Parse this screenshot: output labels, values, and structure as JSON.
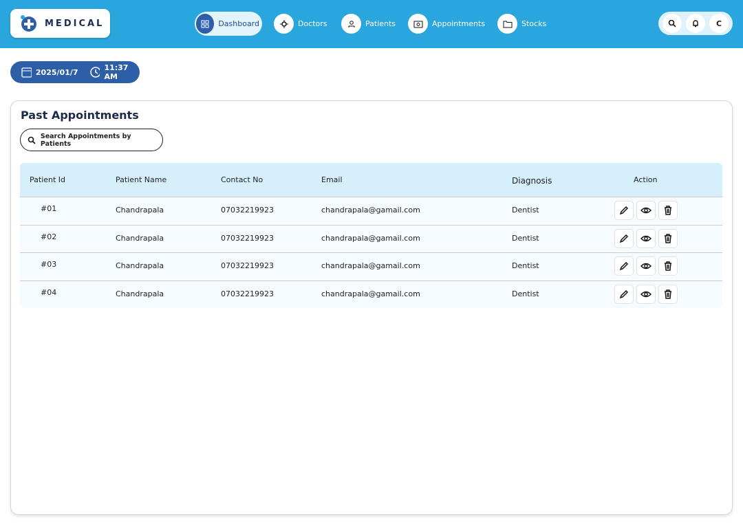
{
  "header": {
    "logo": "MEDICAL",
    "nav": [
      "Dashboard",
      "Doctors",
      "Patients",
      "Appointments",
      "Stocks"
    ],
    "user_initial": "C"
  },
  "datetime": {
    "date": "2025/01/7",
    "time": "11:37 AM"
  },
  "panel": {
    "title": "Past Appointments",
    "search_placeholder": "Search Appointments by Patients"
  },
  "table": {
    "headers": [
      "Patient Id",
      "Patient Name",
      "Contact No",
      "Email",
      "Diagnosis",
      "Action"
    ],
    "rows": [
      [
        "#01",
        "Chandrapala",
        "07032219923",
        "chandrapala@gamail.com",
        "Dentist"
      ],
      [
        "#02",
        "Chandrapala",
        "07032219923",
        "chandrapala@gamail.com",
        "Dentist"
      ],
      [
        "#03",
        "Chandrapala",
        "07032219923",
        "chandrapala@gamail.com",
        "Dentist"
      ],
      [
        "#04",
        "Chandrapala",
        "07032219923",
        "chandrapala@gamail.com",
        "Dentist"
      ]
    ]
  }
}
